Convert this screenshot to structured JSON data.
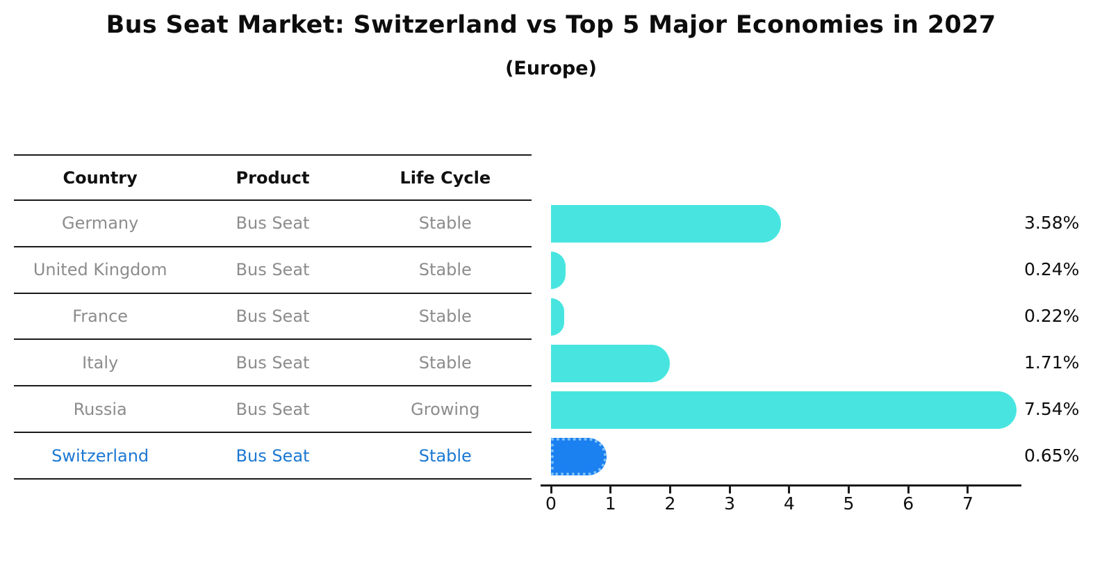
{
  "chart_data": {
    "type": "bar",
    "orientation": "horizontal",
    "title": "Bus Seat Market: Switzerland vs Top 5 Major Economies in 2027",
    "subtitle": "(Europe)",
    "categories": [
      "Germany",
      "United Kingdom",
      "France",
      "Italy",
      "Russia",
      "Switzerland"
    ],
    "values": [
      3.58,
      0.24,
      0.22,
      1.71,
      7.54,
      0.65
    ],
    "value_labels": [
      "3.58%",
      "0.24%",
      "0.22%",
      "1.71%",
      "7.54%",
      "0.65%"
    ],
    "x_ticks": [
      "0",
      "1",
      "2",
      "3",
      "4",
      "5",
      "6",
      "7"
    ],
    "xlim": [
      0,
      7.9
    ],
    "grid": false,
    "legend": "none",
    "bar_color": "#48E5E0",
    "highlight_bar_color": "#1B80F0",
    "highlight_index": 5
  },
  "table": {
    "columns": [
      "Country",
      "Product",
      "Life Cycle"
    ],
    "rows": [
      {
        "country": "Germany",
        "product": "Bus Seat",
        "life_cycle": "Stable",
        "highlight": false
      },
      {
        "country": "United Kingdom",
        "product": "Bus Seat",
        "life_cycle": "Stable",
        "highlight": false
      },
      {
        "country": "France",
        "product": "Bus Seat",
        "life_cycle": "Stable",
        "highlight": false
      },
      {
        "country": "Italy",
        "product": "Bus Seat",
        "life_cycle": "Stable",
        "highlight": false
      },
      {
        "country": "Russia",
        "product": "Bus Seat",
        "life_cycle": "Growing",
        "highlight": false
      },
      {
        "country": "Switzerland",
        "product": "Bus Seat",
        "life_cycle": "Stable",
        "highlight": true
      }
    ]
  },
  "colors": {
    "title_text": "#0d0d0d",
    "header_text": "#101010",
    "row_text": "#8c8c8c",
    "highlight_row_text": "#1b78d2",
    "table_line": "#1a1a1a",
    "axis": "#1a1a1a",
    "value_label_text": "#0d0d0d"
  }
}
